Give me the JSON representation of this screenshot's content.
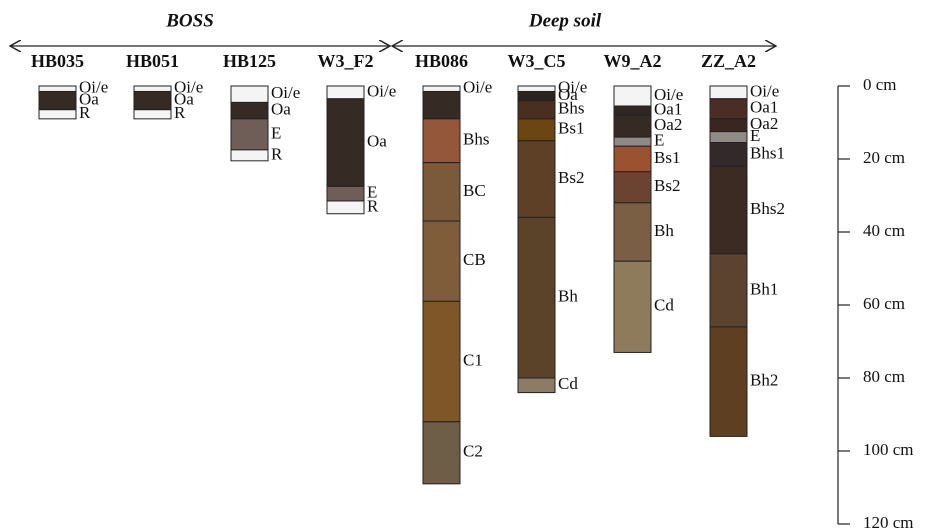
{
  "groups": [
    {
      "title": "BOSS"
    },
    {
      "title": "Deep soil"
    }
  ],
  "scale": {
    "ylim": [
      0,
      120
    ],
    "ticks": [
      {
        "value": 0,
        "label": "0 cm"
      },
      {
        "value": 20,
        "label": "20 cm"
      },
      {
        "value": 40,
        "label": "40 cm"
      },
      {
        "value": 60,
        "label": "60 cm"
      },
      {
        "value": 80,
        "label": "80 cm"
      },
      {
        "value": 100,
        "label": "100 cm"
      },
      {
        "value": 120,
        "label": "120 cm"
      }
    ]
  },
  "profiles": [
    {
      "name": "HB035",
      "horizons": [
        {
          "label": "Oi/e",
          "top": 0,
          "bottom": 1.5,
          "color": "#f4f4f4"
        },
        {
          "label": "Oa",
          "top": 1.5,
          "bottom": 6.5,
          "color": "#352b24"
        },
        {
          "label": "R",
          "top": 6.5,
          "bottom": 9,
          "color": "#f4f4f4"
        }
      ]
    },
    {
      "name": "HB051",
      "horizons": [
        {
          "label": "Oi/e",
          "top": 0,
          "bottom": 1.5,
          "color": "#f4f4f4"
        },
        {
          "label": "Oa",
          "top": 1.5,
          "bottom": 6.5,
          "color": "#352b24"
        },
        {
          "label": "R",
          "top": 6.5,
          "bottom": 9,
          "color": "#f4f4f4"
        }
      ]
    },
    {
      "name": "HB125",
      "horizons": [
        {
          "label": "Oi/e",
          "top": 0,
          "bottom": 4.5,
          "color": "#f4f4f4"
        },
        {
          "label": "Oa",
          "top": 4.5,
          "bottom": 9,
          "color": "#352b24"
        },
        {
          "label": "E",
          "top": 9,
          "bottom": 17.5,
          "color": "#6e5e57"
        },
        {
          "label": "R",
          "top": 17.5,
          "bottom": 20.5,
          "color": "#f4f4f4"
        }
      ]
    },
    {
      "name": "W3_F2",
      "horizons": [
        {
          "label": "Oi/e",
          "top": 0,
          "bottom": 3.5,
          "color": "#f4f4f4"
        },
        {
          "label": "Oa",
          "top": 3.5,
          "bottom": 27.5,
          "color": "#352b24"
        },
        {
          "label": "E",
          "top": 27.5,
          "bottom": 31.5,
          "color": "#6e5e57"
        },
        {
          "label": "R",
          "top": 31.5,
          "bottom": 35,
          "color": "#f4f4f4"
        }
      ]
    },
    {
      "name": "HB086",
      "horizons": [
        {
          "label": "Oi/e",
          "top": 0,
          "bottom": 1.5,
          "color": "#f4f4f4"
        },
        {
          "top": 1.5,
          "bottom": 9,
          "color": "#352b24"
        },
        {
          "label": "Bhs",
          "top": 9,
          "bottom": 21,
          "color": "#94573a"
        },
        {
          "label": "BC",
          "top": 21,
          "bottom": 37,
          "color": "#7a5a3b"
        },
        {
          "label": "CB",
          "top": 37,
          "bottom": 59,
          "color": "#7f5d3a"
        },
        {
          "label": "C1",
          "top": 59,
          "bottom": 92,
          "color": "#7f5627"
        },
        {
          "label": "C2",
          "top": 92,
          "bottom": 109,
          "color": "#6f5e47"
        }
      ]
    },
    {
      "name": "W3_C5",
      "horizons": [
        {
          "label": "Oi/e",
          "top": 0,
          "bottom": 1.5,
          "color": "#f4f4f4"
        },
        {
          "label": "Oa",
          "top": 1.5,
          "bottom": 4,
          "color": "#2b231e"
        },
        {
          "label": "Bhs",
          "top": 4,
          "bottom": 9,
          "color": "#4a2e20"
        },
        {
          "label": "Bs1",
          "top": 9,
          "bottom": 15,
          "color": "#6b4612"
        },
        {
          "label": "Bs2",
          "top": 15,
          "bottom": 36,
          "color": "#5d4026"
        },
        {
          "label": "Bh",
          "top": 36,
          "bottom": 80,
          "color": "#5a4329"
        },
        {
          "label": "Cd",
          "top": 80,
          "bottom": 84,
          "color": "#8c7b66"
        }
      ]
    },
    {
      "name": "W9_A2",
      "horizons": [
        {
          "label": "Oi/e",
          "top": 0,
          "bottom": 5.5,
          "color": "#f4f4f4"
        },
        {
          "label": "Oa1",
          "top": 5.5,
          "bottom": 8,
          "color": "#2f2824"
        },
        {
          "label": "Oa2",
          "top": 8,
          "bottom": 14,
          "color": "#352b24"
        },
        {
          "label": "E",
          "top": 14,
          "bottom": 16.5,
          "color": "#8f8a86"
        },
        {
          "label": "Bs1",
          "top": 16.5,
          "bottom": 23.5,
          "color": "#9a532e"
        },
        {
          "label": "Bs2",
          "top": 23.5,
          "bottom": 32,
          "color": "#6a4430"
        },
        {
          "label": "Bh",
          "top": 32,
          "bottom": 48,
          "color": "#7b5f44"
        },
        {
          "label": "Cd",
          "top": 48,
          "bottom": 73,
          "color": "#8e7b5c"
        }
      ]
    },
    {
      "name": "ZZ_A2",
      "horizons": [
        {
          "label": "Oi/e",
          "top": 0,
          "bottom": 3.5,
          "color": "#f4f4f4"
        },
        {
          "label": "Oa1",
          "top": 3.5,
          "bottom": 9,
          "color": "#4a2e26"
        },
        {
          "label": "Oa2",
          "top": 9,
          "bottom": 12.5,
          "color": "#3a2620"
        },
        {
          "label": "E",
          "top": 12.5,
          "bottom": 15.5,
          "color": "#8f8a86"
        },
        {
          "label": "Bhs1",
          "top": 15.5,
          "bottom": 22,
          "color": "#33292a"
        },
        {
          "label": "Bhs2",
          "top": 22,
          "bottom": 46,
          "color": "#3c2b22"
        },
        {
          "label": "Bh1",
          "top": 46,
          "bottom": 66,
          "color": "#5c432f"
        },
        {
          "label": "Bh2",
          "top": 66,
          "bottom": 96,
          "color": "#5e3f22"
        }
      ]
    }
  ]
}
